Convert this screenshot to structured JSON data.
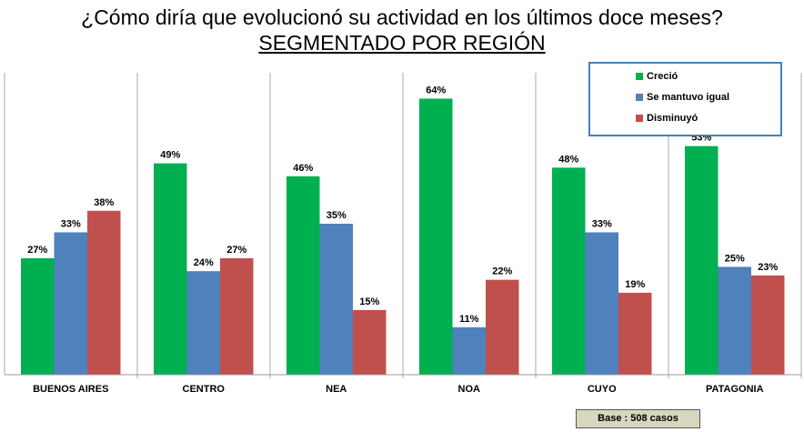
{
  "title": "¿Cómo diría que evolucionó su actividad en los últimos doce meses?",
  "subtitle": "SEGMENTADO POR REGIÓN",
  "base_note": "Base : 508 casos",
  "colors": {
    "Creció": "#00b050",
    "Se mantuvo igual": "#4f81bd",
    "Disminuyó": "#c0504d"
  },
  "chart_data": {
    "type": "bar",
    "title": "¿Cómo diría que evolucionó su actividad en los últimos doce meses?",
    "subtitle": "SEGMENTADO POR REGIÓN",
    "categories": [
      "BUENOS AIRES",
      "CENTRO",
      "NEA",
      "NOA",
      "CUYO",
      "PATAGONIA"
    ],
    "series": [
      {
        "name": "Creció",
        "values": [
          27,
          49,
          46,
          64,
          48,
          53
        ]
      },
      {
        "name": "Se mantuvo igual",
        "values": [
          33,
          24,
          35,
          11,
          33,
          25
        ]
      },
      {
        "name": "Disminuyó",
        "values": [
          38,
          27,
          15,
          22,
          19,
          23
        ]
      }
    ],
    "value_suffix": "%",
    "xlabel": "",
    "ylabel": "",
    "ylim": [
      0,
      70
    ],
    "grid": false,
    "legend_position": "top-right"
  }
}
